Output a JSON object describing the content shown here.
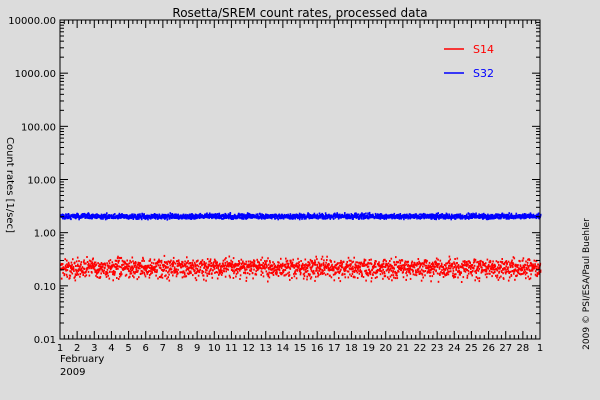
{
  "chart_data": {
    "type": "scatter",
    "title": "Rosetta/SREM count rates, processed data",
    "ylabel": "Count rates [1/sec]",
    "xlabel": "",
    "y_scale": "log",
    "ylim": [
      0.01,
      10000
    ],
    "y_tick_labels": [
      "10000.00",
      "1000.00",
      "100.00",
      "10.00",
      "1.00",
      "0.10",
      "0.01"
    ],
    "y_tick_values": [
      10000,
      1000,
      100,
      10,
      1,
      0.1,
      0.01
    ],
    "xlim": [
      1,
      29
    ],
    "x_tick_labels": [
      "1",
      "2",
      "3",
      "4",
      "5",
      "6",
      "7",
      "8",
      "9",
      "10",
      "11",
      "12",
      "13",
      "14",
      "15",
      "16",
      "17",
      "18",
      "19",
      "20",
      "21",
      "22",
      "23",
      "24",
      "25",
      "26",
      "27",
      "28",
      "1"
    ],
    "x_month_label": "February",
    "x_year_label": "2009",
    "grid": false,
    "legend_position": "top-right",
    "series": [
      {
        "name": "S14",
        "color": "#ff0000",
        "typical_value": 0.22,
        "spread_low": 0.11,
        "spread_high": 0.38
      },
      {
        "name": "S32",
        "color": "#0000ff",
        "typical_value": 2.0,
        "spread_low": 1.75,
        "spread_high": 2.4
      }
    ],
    "annotations": {
      "credit": "2009 © PSI/ESA/Paul Buehler"
    }
  }
}
